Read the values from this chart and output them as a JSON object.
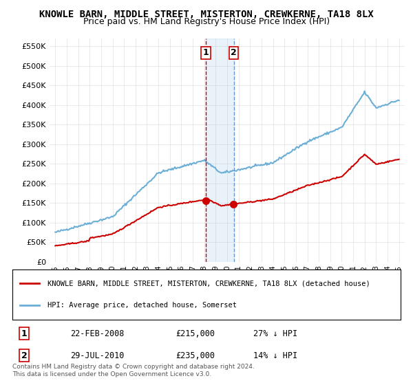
{
  "title": "KNOWLE BARN, MIDDLE STREET, MISTERTON, CREWKERNE, TA18 8LX",
  "subtitle": "Price paid vs. HM Land Registry's House Price Index (HPI)",
  "ylabel_ticks": [
    "£0",
    "£50K",
    "£100K",
    "£150K",
    "£200K",
    "£250K",
    "£300K",
    "£350K",
    "£400K",
    "£450K",
    "£500K",
    "£550K"
  ],
  "ytick_values": [
    0,
    50000,
    100000,
    150000,
    200000,
    250000,
    300000,
    350000,
    400000,
    450000,
    500000,
    550000
  ],
  "ylim": [
    0,
    570000
  ],
  "hpi_color": "#6baed6",
  "price_color": "#cc0000",
  "transaction1_date": "22-FEB-2008",
  "transaction1_price": 215000,
  "transaction1_hpi": "27% ↓ HPI",
  "transaction2_date": "29-JUL-2010",
  "transaction2_price": 235000,
  "transaction2_hpi": "14% ↓ HPI",
  "legend_label1": "KNOWLE BARN, MIDDLE STREET, MISTERTON, CREWKERNE, TA18 8LX (detached house)",
  "legend_label2": "HPI: Average price, detached house, Somerset",
  "footer": "Contains HM Land Registry data © Crown copyright and database right 2024.\nThis data is licensed under the Open Government Licence v3.0.",
  "background_color": "#ffffff",
  "grid_color": "#e0e0e0"
}
